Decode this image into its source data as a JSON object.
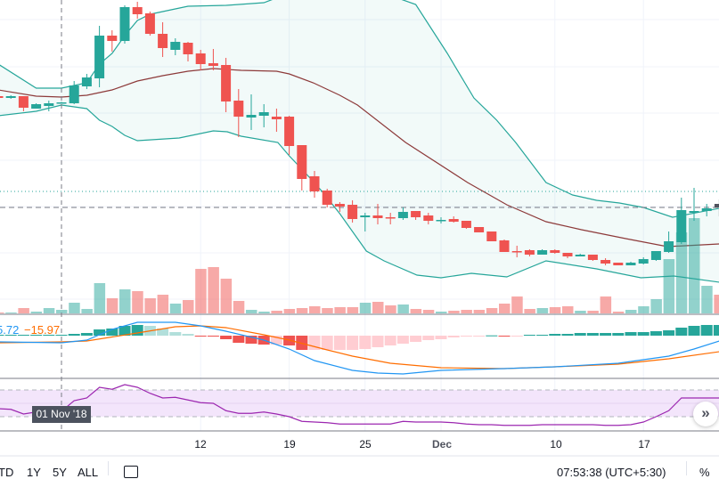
{
  "colors": {
    "up": "#26a69a",
    "down": "#ef5350",
    "band": "#26a69a",
    "basis": "#8d3a3a",
    "macd": "#2196f3",
    "signal": "#ff6d00",
    "rsi": "#9c27b0"
  },
  "chart_data": {
    "type": "candlestick",
    "ylim": [
      3000,
      6500
    ],
    "candles_start_index": -5,
    "candles": [
      [
        5420,
        5430,
        5390,
        5400
      ],
      [
        5400,
        5430,
        5390,
        5420
      ],
      [
        5420,
        5420,
        5250,
        5290
      ],
      [
        5280,
        5340,
        5280,
        5330
      ],
      [
        5310,
        5370,
        5250,
        5340
      ],
      [
        5345,
        5355,
        5345,
        5350
      ],
      [
        5340,
        5590,
        5330,
        5540
      ],
      [
        5530,
        5670,
        5500,
        5630
      ],
      [
        5620,
        6210,
        5520,
        6100
      ],
      [
        6100,
        6160,
        5920,
        6040
      ],
      [
        6040,
        6440,
        6010,
        6420
      ],
      [
        6420,
        6480,
        6290,
        6340
      ],
      [
        6350,
        6370,
        6100,
        6120
      ],
      [
        6120,
        6250,
        5860,
        5960
      ],
      [
        5940,
        6070,
        5880,
        6030
      ],
      [
        6020,
        6030,
        5810,
        5890
      ],
      [
        5900,
        5940,
        5710,
        5780
      ],
      [
        5790,
        5950,
        5710,
        5760
      ],
      [
        5770,
        5850,
        5240,
        5360
      ],
      [
        5370,
        5500,
        4960,
        5190
      ],
      [
        5180,
        5440,
        5040,
        5210
      ],
      [
        5200,
        5330,
        5070,
        5240
      ],
      [
        5190,
        5280,
        5020,
        5160
      ],
      [
        5190,
        5200,
        4760,
        4860
      ],
      [
        4870,
        4870,
        4360,
        4490
      ],
      [
        4520,
        4580,
        4280,
        4350
      ],
      [
        4360,
        4380,
        4170,
        4200
      ],
      [
        4210,
        4230,
        4120,
        4180
      ],
      [
        4200,
        4250,
        4000,
        4040
      ],
      [
        4060,
        4110,
        3900,
        4080
      ],
      [
        4080,
        4210,
        3980,
        4050
      ],
      [
        4060,
        4110,
        3980,
        4050
      ],
      [
        4050,
        4170,
        4030,
        4120
      ],
      [
        4130,
        4130,
        4030,
        4060
      ],
      [
        4080,
        4110,
        3980,
        4020
      ],
      [
        4020,
        4060,
        3990,
        4030
      ],
      [
        4040,
        4070,
        4000,
        4010
      ],
      [
        4020,
        4020,
        3930,
        3940
      ],
      [
        3950,
        3950,
        3890,
        3890
      ],
      [
        3900,
        3900,
        3790,
        3790
      ],
      [
        3800,
        3810,
        3670,
        3670
      ],
      [
        3680,
        3740,
        3610,
        3670
      ],
      [
        3690,
        3700,
        3620,
        3640
      ],
      [
        3640,
        3700,
        3640,
        3690
      ],
      [
        3690,
        3700,
        3650,
        3660
      ],
      [
        3660,
        3660,
        3600,
        3620
      ],
      [
        3620,
        3650,
        3620,
        3640
      ],
      [
        3640,
        3640,
        3570,
        3580
      ],
      [
        3580,
        3600,
        3520,
        3540
      ],
      [
        3550,
        3550,
        3520,
        3520
      ],
      [
        3520,
        3560,
        3520,
        3550
      ],
      [
        3540,
        3610,
        3530,
        3590
      ],
      [
        3580,
        3680,
        3570,
        3680
      ],
      [
        3670,
        3900,
        3660,
        3790
      ],
      [
        3780,
        4280,
        3760,
        4140
      ],
      [
        4110,
        4390,
        4020,
        4130
      ],
      [
        4130,
        4210,
        4070,
        4160
      ],
      [
        4210,
        4260,
        4070,
        4170
      ]
    ],
    "volumes": [
      1000,
      1000,
      6000,
      2000,
      6000,
      4000,
      12000,
      5000,
      34000,
      17000,
      27000,
      25000,
      17000,
      21000,
      11000,
      15000,
      50000,
      52000,
      39000,
      14000,
      4000,
      2000,
      3000,
      5000,
      6000,
      8000,
      6000,
      7000,
      7000,
      12000,
      13000,
      9000,
      10000,
      5000,
      4000,
      2000,
      3000,
      4000,
      4000,
      6000,
      11000,
      19000,
      5000,
      6000,
      7000,
      8000,
      3000,
      3000,
      19000,
      2000,
      4000,
      8000,
      16000,
      61000,
      91000,
      107000,
      31000,
      21000
    ],
    "bollinger": {
      "upper": [
        [
          -5,
          5780
        ],
        [
          -2,
          5510
        ],
        [
          0,
          5510
        ],
        [
          2,
          5570
        ],
        [
          3,
          5780
        ],
        [
          4,
          5900
        ],
        [
          5,
          6100
        ],
        [
          6,
          6270
        ],
        [
          7,
          6340
        ],
        [
          10,
          6430
        ],
        [
          13,
          6440
        ],
        [
          16,
          6470
        ],
        [
          17.5,
          6550
        ],
        [
          26,
          6550
        ],
        [
          28,
          6450
        ],
        [
          30.5,
          5900
        ],
        [
          32.6,
          5400
        ],
        [
          34.4,
          5150
        ],
        [
          35.9,
          4900
        ],
        [
          38.3,
          4450
        ],
        [
          40.4,
          4310
        ],
        [
          42.3,
          4250
        ],
        [
          44.1,
          4220
        ],
        [
          46,
          4170
        ],
        [
          48.3,
          4060
        ],
        [
          52,
          4160
        ]
      ],
      "basis": [
        [
          -5,
          5490
        ],
        [
          -2,
          5420
        ],
        [
          0,
          5410
        ],
        [
          2,
          5430
        ],
        [
          4,
          5490
        ],
        [
          6,
          5590
        ],
        [
          8,
          5650
        ],
        [
          10,
          5700
        ],
        [
          12,
          5730
        ],
        [
          14.2,
          5710
        ],
        [
          17,
          5700
        ],
        [
          18,
          5670
        ],
        [
          19.9,
          5570
        ],
        [
          22,
          5430
        ],
        [
          23.4,
          5320
        ],
        [
          27.2,
          4900
        ],
        [
          32.1,
          4450
        ],
        [
          35.2,
          4200
        ],
        [
          38.3,
          4010
        ],
        [
          41.1,
          3920
        ],
        [
          44.6,
          3820
        ],
        [
          47.9,
          3730
        ],
        [
          52,
          3760
        ]
      ],
      "lower": [
        [
          -5,
          5200
        ],
        [
          -2,
          5250
        ],
        [
          0,
          5320
        ],
        [
          2,
          5280
        ],
        [
          3,
          5150
        ],
        [
          4,
          5080
        ],
        [
          5,
          4980
        ],
        [
          6,
          4920
        ],
        [
          9.3,
          4950
        ],
        [
          12,
          5030
        ],
        [
          13.1,
          5020
        ],
        [
          14.2,
          4970
        ],
        [
          17.1,
          4900
        ],
        [
          18,
          4750
        ],
        [
          19.2,
          4570
        ],
        [
          20.6,
          4350
        ],
        [
          22,
          4100
        ],
        [
          23.4,
          3820
        ],
        [
          24.1,
          3680
        ],
        [
          25.5,
          3570
        ],
        [
          28.1,
          3410
        ],
        [
          30,
          3380
        ],
        [
          32.4,
          3430
        ],
        [
          35.2,
          3390
        ],
        [
          38.3,
          3570
        ],
        [
          42.3,
          3480
        ],
        [
          45.8,
          3380
        ],
        [
          48.4,
          3400
        ],
        [
          52,
          3330
        ]
      ]
    },
    "price_lines": {
      "last": 4170,
      "dotted": 4350
    },
    "macd": {
      "hist": [
        10,
        10,
        10,
        10,
        10,
        10,
        20,
        30,
        70,
        80,
        110,
        120,
        110,
        80,
        40,
        20,
        -3,
        -5,
        -40,
        -80,
        -90,
        -100,
        -100,
        -110,
        -160,
        -160,
        -160,
        -160,
        -160,
        -150,
        -130,
        -110,
        -90,
        -70,
        -50,
        -40,
        -20,
        -10,
        -8,
        3,
        -3,
        -2,
        10,
        10,
        20,
        20,
        30,
        30,
        30,
        30,
        40,
        40,
        50,
        60,
        90,
        110,
        120,
        120
      ],
      "macd_line": [
        [
          -5,
          -70
        ],
        [
          0,
          -80
        ],
        [
          2,
          -50
        ],
        [
          4,
          70
        ],
        [
          6,
          150
        ],
        [
          9,
          150
        ],
        [
          11,
          110
        ],
        [
          13,
          50
        ],
        [
          16,
          -50
        ],
        [
          18,
          -150
        ],
        [
          20,
          -280
        ],
        [
          23,
          -390
        ],
        [
          25,
          -420
        ],
        [
          27,
          -430
        ],
        [
          30,
          -390
        ],
        [
          35,
          -370
        ],
        [
          39,
          -350
        ],
        [
          44,
          -310
        ],
        [
          48,
          -230
        ],
        [
          50,
          -150
        ],
        [
          52,
          -60
        ]
      ],
      "signal_line": [
        [
          -5,
          -80
        ],
        [
          0,
          -70
        ],
        [
          2,
          -60
        ],
        [
          6,
          30
        ],
        [
          9,
          100
        ],
        [
          11,
          110
        ],
        [
          13,
          90
        ],
        [
          16,
          10
        ],
        [
          18,
          -50
        ],
        [
          21,
          -160
        ],
        [
          23,
          -230
        ],
        [
          26,
          -310
        ],
        [
          30,
          -360
        ],
        [
          35,
          -370
        ],
        [
          39,
          -350
        ],
        [
          44,
          -320
        ],
        [
          48,
          -260
        ],
        [
          52,
          -180
        ]
      ],
      "macd_value": "5.72",
      "signal_value": "−15.97"
    },
    "rsi": {
      "values": [
        42,
        41,
        34,
        37,
        38,
        38,
        54,
        58,
        74,
        71,
        78,
        74,
        65,
        58,
        59,
        55,
        51,
        50,
        39,
        35,
        35,
        37,
        34,
        30,
        23,
        22,
        21,
        19,
        19,
        19,
        19,
        19,
        23,
        22,
        22,
        22,
        21,
        19,
        18,
        18,
        17,
        17,
        17,
        18,
        18,
        18,
        18,
        18,
        17,
        17,
        18,
        22,
        30,
        39,
        58,
        58,
        58,
        58
      ],
      "upper": 70,
      "lower": 30
    },
    "x_ticks": [
      {
        "index": 11,
        "label": "12"
      },
      {
        "index": 18,
        "label": "19"
      },
      {
        "index": 24,
        "label": "25"
      },
      {
        "index": 30,
        "label": "Dec"
      },
      {
        "index": 39,
        "label": "10"
      },
      {
        "index": 46,
        "label": "17"
      }
    ],
    "crosshair": {
      "index": 0,
      "label": "01 Nov '18"
    }
  },
  "toolbar": {
    "ranges": [
      "TD",
      "1Y",
      "5Y",
      "ALL"
    ],
    "time": "07:53:38 (UTC+5:30)",
    "percent": "%",
    "scroll_icon": "»"
  }
}
